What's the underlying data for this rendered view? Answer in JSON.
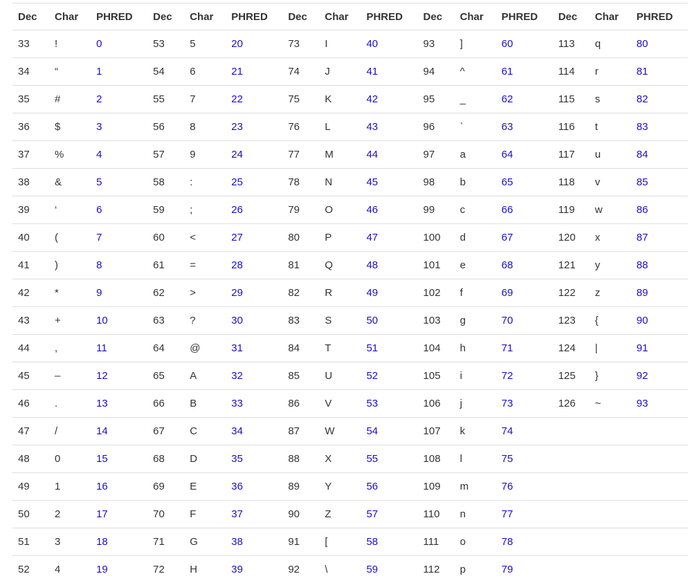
{
  "columns": [
    "Dec",
    "Char",
    "PHRED",
    "Dec",
    "Char",
    "PHRED",
    "Dec",
    "Char",
    "PHRED",
    "Dec",
    "Char",
    "PHRED",
    "Dec",
    "Char",
    "PHRED"
  ],
  "rows": [
    [
      "33",
      "!",
      "0",
      "53",
      "5",
      "20",
      "73",
      "I",
      "40",
      "93",
      "]",
      "60",
      "113",
      "q",
      "80"
    ],
    [
      "34",
      "“",
      "1",
      "54",
      "6",
      "21",
      "74",
      "J",
      "41",
      "94",
      "^",
      "61",
      "114",
      "r",
      "81"
    ],
    [
      "35",
      "#",
      "2",
      "55",
      "7",
      "22",
      "75",
      "K",
      "42",
      "95",
      "_",
      "62",
      "115",
      "s",
      "82"
    ],
    [
      "36",
      "$",
      "3",
      "56",
      "8",
      "23",
      "76",
      "L",
      "43",
      "96",
      "`",
      "63",
      "116",
      "t",
      "83"
    ],
    [
      "37",
      "%",
      "4",
      "57",
      "9",
      "24",
      "77",
      "M",
      "44",
      "97",
      "a",
      "64",
      "117",
      "u",
      "84"
    ],
    [
      "38",
      "&",
      "5",
      "58",
      ":",
      "25",
      "78",
      "N",
      "45",
      "98",
      "b",
      "65",
      "118",
      "v",
      "85"
    ],
    [
      "39",
      "‘",
      "6",
      "59",
      ";",
      "26",
      "79",
      "O",
      "46",
      "99",
      "c",
      "66",
      "119",
      "w",
      "86"
    ],
    [
      "40",
      "(",
      "7",
      "60",
      "<",
      "27",
      "80",
      "P",
      "47",
      "100",
      "d",
      "67",
      "120",
      "x",
      "87"
    ],
    [
      "41",
      ")",
      "8",
      "61",
      "=",
      "28",
      "81",
      "Q",
      "48",
      "101",
      "e",
      "68",
      "121",
      "y",
      "88"
    ],
    [
      "42",
      "*",
      "9",
      "62",
      ">",
      "29",
      "82",
      "R",
      "49",
      "102",
      "f",
      "69",
      "122",
      "z",
      "89"
    ],
    [
      "43",
      "+",
      "10",
      "63",
      "?",
      "30",
      "83",
      "S",
      "50",
      "103",
      "g",
      "70",
      "123",
      "{",
      "90"
    ],
    [
      "44",
      ",",
      "11",
      "64",
      "@",
      "31",
      "84",
      "T",
      "51",
      "104",
      "h",
      "71",
      "124",
      "|",
      "91"
    ],
    [
      "45",
      "–",
      "12",
      "65",
      "A",
      "32",
      "85",
      "U",
      "52",
      "105",
      "i",
      "72",
      "125",
      "}",
      "92"
    ],
    [
      "46",
      ".",
      "13",
      "66",
      "B",
      "33",
      "86",
      "V",
      "53",
      "106",
      "j",
      "73",
      "126",
      "~",
      "93"
    ],
    [
      "47",
      "/",
      "14",
      "67",
      "C",
      "34",
      "87",
      "W",
      "54",
      "107",
      "k",
      "74",
      "",
      "",
      ""
    ],
    [
      "48",
      "0",
      "15",
      "68",
      "D",
      "35",
      "88",
      "X",
      "55",
      "108",
      "l",
      "75",
      "",
      "",
      ""
    ],
    [
      "49",
      "1",
      "16",
      "69",
      "E",
      "36",
      "89",
      "Y",
      "56",
      "109",
      "m",
      "76",
      "",
      "",
      ""
    ],
    [
      "50",
      "2",
      "17",
      "70",
      "F",
      "37",
      "90",
      "Z",
      "57",
      "110",
      "n",
      "77",
      "",
      "",
      ""
    ],
    [
      "51",
      "3",
      "18",
      "71",
      "G",
      "38",
      "91",
      "[",
      "58",
      "111",
      "o",
      "78",
      "",
      "",
      ""
    ],
    [
      "52",
      "4",
      "19",
      "72",
      "H",
      "39",
      "92",
      "\\",
      "59",
      "112",
      "p",
      "79",
      "",
      "",
      ""
    ]
  ],
  "colors": {
    "text": "#333333",
    "phred": "#1a0dcc",
    "border": "#dddddd"
  }
}
